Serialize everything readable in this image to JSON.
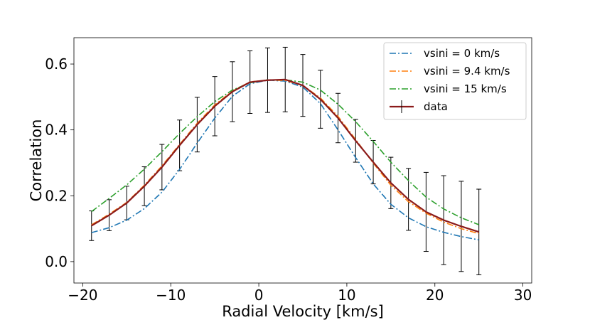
{
  "chart_data": {
    "type": "line",
    "title": "",
    "xlabel": "Radial Velocity [km/s]",
    "ylabel": "Correlation",
    "xlim": [
      -21,
      31
    ],
    "ylim": [
      -0.065,
      0.68
    ],
    "x_ticks": [
      -20,
      -10,
      0,
      10,
      20,
      30
    ],
    "x_tick_labels": [
      "−20",
      "−10",
      "0",
      "10",
      "20",
      "30"
    ],
    "y_ticks": [
      0.0,
      0.2,
      0.4,
      0.6
    ],
    "y_tick_labels": [
      "0.0",
      "0.2",
      "0.4",
      "0.6"
    ],
    "grid": false,
    "legend_position": "top-right",
    "series": [
      {
        "name": "vsini = 0 km/s",
        "color": "#1f77b4",
        "style": "dashdot",
        "x": [
          -19,
          -17,
          -15,
          -13,
          -11,
          -9,
          -7,
          -5,
          -3,
          -1,
          1,
          3,
          5,
          7,
          9,
          11,
          13,
          15,
          17,
          19,
          21,
          23,
          25
        ],
        "y": [
          0.088,
          0.103,
          0.126,
          0.161,
          0.211,
          0.28,
          0.36,
          0.436,
          0.502,
          0.54,
          0.551,
          0.548,
          0.53,
          0.48,
          0.4,
          0.316,
          0.236,
          0.174,
          0.133,
          0.106,
          0.089,
          0.076,
          0.066
        ]
      },
      {
        "name": "vsini = 9.4 km/s",
        "color": "#ff7f0e",
        "style": "dashdot",
        "x": [
          -19,
          -17,
          -15,
          -13,
          -11,
          -9,
          -7,
          -5,
          -3,
          -1,
          1,
          3,
          5,
          7,
          9,
          11,
          13,
          15,
          17,
          19,
          21,
          23,
          25
        ],
        "y": [
          0.112,
          0.144,
          0.18,
          0.232,
          0.291,
          0.356,
          0.42,
          0.476,
          0.518,
          0.546,
          0.551,
          0.55,
          0.535,
          0.497,
          0.441,
          0.371,
          0.299,
          0.232,
          0.182,
          0.147,
          0.12,
          0.1,
          0.085
        ]
      },
      {
        "name": "vsini = 15 km/s",
        "color": "#2ca02c",
        "style": "dashdot",
        "x": [
          -19,
          -17,
          -15,
          -13,
          -11,
          -9,
          -7,
          -5,
          -3,
          -1,
          1,
          3,
          5,
          7,
          9,
          11,
          13,
          15,
          17,
          19,
          21,
          23,
          25
        ],
        "y": [
          0.152,
          0.192,
          0.233,
          0.281,
          0.334,
          0.389,
          0.44,
          0.486,
          0.521,
          0.543,
          0.552,
          0.552,
          0.545,
          0.521,
          0.478,
          0.425,
          0.365,
          0.302,
          0.246,
          0.196,
          0.16,
          0.133,
          0.112
        ]
      }
    ],
    "data_series": {
      "name": "data",
      "color": "#8b1a1a",
      "x": [
        -19,
        -17,
        -15,
        -13,
        -11,
        -9,
        -7,
        -5,
        -3,
        -1,
        1,
        3,
        5,
        7,
        9,
        11,
        13,
        15,
        17,
        19,
        21,
        23,
        25
      ],
      "y": [
        0.109,
        0.141,
        0.178,
        0.229,
        0.287,
        0.353,
        0.416,
        0.472,
        0.516,
        0.545,
        0.551,
        0.553,
        0.535,
        0.493,
        0.436,
        0.367,
        0.302,
        0.239,
        0.189,
        0.151,
        0.126,
        0.107,
        0.09
      ],
      "yerr": [
        0.045,
        0.047,
        0.051,
        0.059,
        0.069,
        0.077,
        0.083,
        0.09,
        0.091,
        0.095,
        0.098,
        0.098,
        0.094,
        0.088,
        0.075,
        0.065,
        0.066,
        0.078,
        0.094,
        0.12,
        0.135,
        0.137,
        0.13
      ]
    }
  }
}
